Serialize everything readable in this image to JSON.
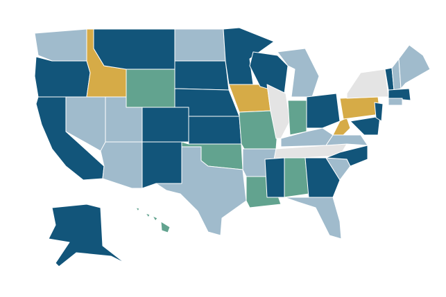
{
  "map": {
    "fills": [
      "#12557a",
      "#a0bbcc",
      "#d6ab47",
      "#62a38f",
      "#e4e4e4"
    ]
  }
}
